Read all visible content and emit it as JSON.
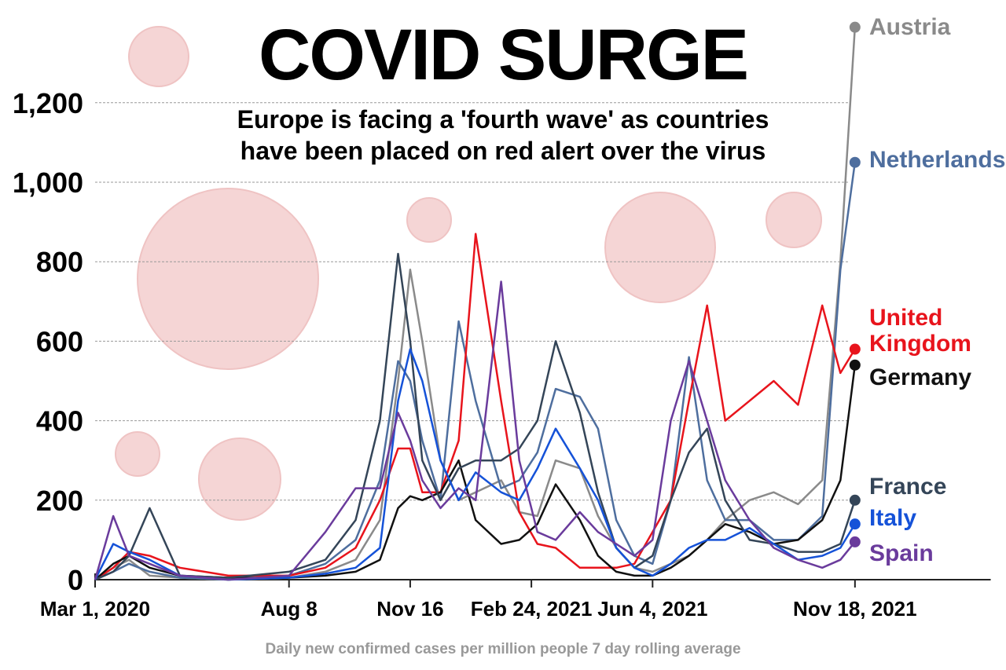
{
  "chart_data": {
    "type": "line",
    "title": "COVID SURGE",
    "subtitle": "Europe is facing a 'fourth wave' as countries have been placed on red alert over the virus",
    "x_label": "Daily new confirmed cases per million people 7 day rolling average",
    "x": [
      0,
      15,
      28,
      45,
      70,
      110,
      160,
      190,
      215,
      235,
      250,
      260,
      270,
      285,
      300,
      314,
      335,
      350,
      365,
      380,
      400,
      415,
      430,
      445,
      460,
      475,
      490,
      505,
      520,
      540,
      560,
      580,
      600,
      615,
      627
    ],
    "xlim": [
      0,
      739
    ],
    "xticks": [
      {
        "value": 0,
        "label": "Mar 1, 2020"
      },
      {
        "value": 160,
        "label": "Aug 8"
      },
      {
        "value": 260,
        "label": "Nov 16"
      },
      {
        "value": 360,
        "label": "Feb 24, 2021"
      },
      {
        "value": 460,
        "label": "Jun 4, 2021"
      },
      {
        "value": 627,
        "label": "Nov 18, 2021"
      }
    ],
    "ylim": [
      0,
      1400
    ],
    "yticks": [
      0,
      200,
      400,
      600,
      800,
      {
        "value": 1000,
        "label": "1,000"
      },
      {
        "value": 1200,
        "label": "1,200"
      }
    ],
    "grid": true,
    "series": [
      {
        "name": "Austria",
        "color": "#8a8a8a",
        "values": [
          0,
          30,
          50,
          10,
          5,
          0,
          5,
          20,
          50,
          150,
          500,
          780,
          600,
          300,
          200,
          220,
          250,
          170,
          160,
          300,
          280,
          160,
          80,
          30,
          20,
          40,
          60,
          100,
          150,
          200,
          220,
          190,
          250,
          800,
          1390
        ]
      },
      {
        "name": "Netherlands",
        "color": "#4e6e9e",
        "values": [
          0,
          20,
          40,
          20,
          5,
          0,
          10,
          40,
          100,
          250,
          550,
          500,
          350,
          200,
          650,
          450,
          230,
          250,
          320,
          480,
          460,
          380,
          150,
          60,
          40,
          200,
          560,
          250,
          150,
          150,
          100,
          100,
          160,
          780,
          1050
        ]
      },
      {
        "name": "United Kingdom",
        "color": "#e8141c",
        "values": [
          0,
          30,
          70,
          60,
          30,
          10,
          10,
          30,
          80,
          200,
          330,
          330,
          220,
          220,
          350,
          870,
          450,
          170,
          90,
          80,
          30,
          30,
          30,
          40,
          120,
          200,
          450,
          690,
          400,
          450,
          500,
          440,
          690,
          520,
          580
        ]
      },
      {
        "name": "Germany",
        "color": "#111111",
        "values": [
          0,
          40,
          60,
          30,
          10,
          5,
          5,
          10,
          20,
          50,
          180,
          210,
          200,
          220,
          300,
          150,
          90,
          100,
          140,
          240,
          150,
          60,
          20,
          10,
          10,
          30,
          60,
          100,
          140,
          120,
          90,
          100,
          150,
          250,
          540
        ]
      },
      {
        "name": "France",
        "color": "#344558",
        "values": [
          0,
          20,
          60,
          180,
          10,
          5,
          20,
          50,
          150,
          400,
          820,
          600,
          300,
          200,
          280,
          300,
          300,
          330,
          400,
          600,
          420,
          220,
          80,
          30,
          60,
          200,
          320,
          380,
          200,
          100,
          90,
          70,
          70,
          90,
          200
        ]
      },
      {
        "name": "Italy",
        "color": "#1552d8",
        "values": [
          0,
          90,
          70,
          50,
          10,
          0,
          5,
          15,
          30,
          80,
          450,
          580,
          500,
          300,
          200,
          270,
          220,
          200,
          280,
          380,
          280,
          200,
          80,
          30,
          10,
          40,
          80,
          100,
          100,
          130,
          90,
          50,
          60,
          80,
          140
        ]
      },
      {
        "name": "Spain",
        "color": "#6a3b9c",
        "values": [
          0,
          160,
          60,
          40,
          10,
          0,
          10,
          120,
          230,
          230,
          420,
          350,
          250,
          180,
          230,
          200,
          750,
          300,
          120,
          100,
          170,
          120,
          90,
          60,
          100,
          400,
          550,
          400,
          250,
          150,
          80,
          50,
          30,
          50,
          95
        ]
      }
    ]
  }
}
